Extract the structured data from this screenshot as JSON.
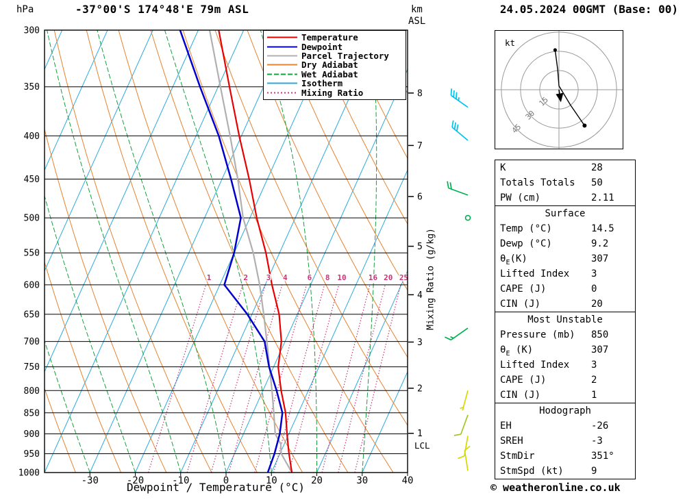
{
  "header": {
    "pressure_unit": "hPa",
    "station_title": "-37°00'S 174°48'E 79m ASL",
    "km_label": "km",
    "asl_label": "ASL",
    "datetime_title": "24.05.2024 00GMT (Base: 00)"
  },
  "axes": {
    "x_axis_label": "Dewpoint / Temperature (°C)",
    "mixing_ratio_axis_label": "Mixing Ratio (g/kg)",
    "km_ticks": [
      1,
      2,
      3,
      4,
      5,
      6,
      7,
      8
    ],
    "lcl_label": "LCL"
  },
  "colors": {
    "temperature": "#e80000",
    "dewpoint": "#0000cd",
    "parcel": "#b0b0b0",
    "dry_adiabat": "#e8822d",
    "wet_adiabat": "#14a03c",
    "isotherm": "#29aadf",
    "mixing_ratio": "#cc3377",
    "gridline": "#000000"
  },
  "legend": [
    {
      "label": "Temperature",
      "color": "#e80000",
      "dash": ""
    },
    {
      "label": "Dewpoint",
      "color": "#0000cd",
      "dash": ""
    },
    {
      "label": "Parcel Trajectory",
      "color": "#b0b0b0",
      "dash": ""
    },
    {
      "label": "Dry Adiabat",
      "color": "#e8822d",
      "dash": ""
    },
    {
      "label": "Wet Adiabat",
      "color": "#14a03c",
      "dash": "7 3"
    },
    {
      "label": "Isotherm",
      "color": "#29aadf",
      "dash": ""
    },
    {
      "label": "Mixing Ratio",
      "color": "#cc3377",
      "dash": "2 3"
    }
  ],
  "chart_data": {
    "type": "line",
    "variant": "skew-t log-p sounding",
    "title": "-37°00'S 174°48'E 79m ASL  24.05.2024 00GMT (Base: 00)",
    "x_axis": {
      "label": "Dewpoint / Temperature (°C)",
      "range": [
        -40,
        40
      ],
      "ticks": [
        -30,
        -20,
        -10,
        0,
        10,
        20,
        30,
        40
      ],
      "unit": "°C"
    },
    "y_axis": {
      "label": "hPa",
      "scale": "log",
      "range": [
        1000,
        300
      ],
      "ticks": [
        300,
        350,
        400,
        450,
        500,
        550,
        600,
        650,
        700,
        750,
        800,
        850,
        900,
        950,
        1000
      ],
      "unit": "hPa"
    },
    "series": [
      {
        "name": "Temperature",
        "color": "#e80000",
        "width": 2.2,
        "pressure_hPa": [
          1000,
          950,
          925,
          900,
          850,
          800,
          750,
          700,
          650,
          600,
          550,
          500,
          450,
          400,
          350,
          300
        ],
        "values_C": [
          14.5,
          12,
          10.8,
          9.6,
          7.2,
          4,
          1,
          -0.8,
          -4,
          -8.5,
          -13,
          -18.5,
          -24,
          -30.5,
          -37.5,
          -45.5
        ]
      },
      {
        "name": "Dewpoint",
        "color": "#0000cd",
        "width": 2.5,
        "pressure_hPa": [
          1000,
          950,
          925,
          900,
          850,
          800,
          750,
          700,
          650,
          600,
          550,
          500,
          450,
          400,
          350,
          300
        ],
        "values_C": [
          9.2,
          8.8,
          8.4,
          8,
          6.5,
          3,
          -1,
          -4.5,
          -11,
          -19,
          -20,
          -22,
          -28,
          -35,
          -44,
          -54
        ]
      },
      {
        "name": "Parcel Trajectory",
        "color": "#b0b0b0",
        "width": 2.2,
        "pressure_hPa": [
          1000,
          950,
          925,
          900,
          850,
          800,
          750,
          700,
          650,
          600,
          550,
          500,
          450,
          400,
          350,
          300
        ],
        "values_C": [
          14.5,
          10.3,
          9.2,
          7,
          4.6,
          2,
          -0.9,
          -4,
          -7.4,
          -11.2,
          -15.8,
          -21.5,
          -26.5,
          -32.5,
          -39.5,
          -47.5
        ]
      }
    ],
    "mixing_ratio_lines_g_kg": [
      1,
      2,
      3,
      4,
      6,
      8,
      10,
      16,
      20,
      25
    ],
    "winds": [
      {
        "pressure_hPa": 370,
        "speed_kt": 35,
        "dir_deg": 305,
        "color": "#00c0f0"
      },
      {
        "pressure_hPa": 405,
        "speed_kt": 30,
        "dir_deg": 310,
        "color": "#00c0f0"
      },
      {
        "pressure_hPa": 470,
        "speed_kt": 20,
        "dir_deg": 290,
        "color": "#00b050"
      },
      {
        "pressure_hPa": 500,
        "speed_kt": 2,
        "dir_deg": 0,
        "color": "#00b050",
        "calm": true
      },
      {
        "pressure_hPa": 675,
        "speed_kt": 15,
        "dir_deg": 235,
        "color": "#00b050"
      },
      {
        "pressure_hPa": 800,
        "speed_kt": 5,
        "dir_deg": 195,
        "color": "#d8d800"
      },
      {
        "pressure_hPa": 855,
        "speed_kt": 10,
        "dir_deg": 200,
        "color": "#a0c820"
      },
      {
        "pressure_hPa": 905,
        "speed_kt": 10,
        "dir_deg": 190,
        "color": "#d8d800"
      },
      {
        "pressure_hPa": 995,
        "speed_kt": 9,
        "dir_deg": 351,
        "color": "#d8d800"
      }
    ]
  },
  "hodograph": {
    "unit_label": "kt",
    "rings_kt": [
      15,
      30,
      45
    ],
    "trace_kt": [
      [
        -3,
        31
      ],
      [
        -1,
        16
      ],
      [
        0,
        3
      ],
      [
        9,
        -12
      ],
      [
        20,
        -28
      ]
    ],
    "storm_motion": {
      "dir_deg": 351,
      "speed_kt": 9
    }
  },
  "table": {
    "sections": [
      {
        "header": null,
        "rows": [
          [
            "K",
            "28"
          ],
          [
            "Totals Totals",
            "50"
          ],
          [
            "PW (cm)",
            "2.11"
          ]
        ]
      },
      {
        "header": "Surface",
        "rows": [
          [
            "Temp (°C)",
            "14.5"
          ],
          [
            "Dewp (°C)",
            "9.2"
          ],
          [
            "θE(K)",
            "307"
          ],
          [
            "Lifted Index",
            "3"
          ],
          [
            "CAPE (J)",
            "0"
          ],
          [
            "CIN (J)",
            "20"
          ]
        ]
      },
      {
        "header": "Most Unstable",
        "rows": [
          [
            "Pressure (mb)",
            "850"
          ],
          [
            "θE (K)",
            "307"
          ],
          [
            "Lifted Index",
            "3"
          ],
          [
            "CAPE (J)",
            "2"
          ],
          [
            "CIN (J)",
            "1"
          ]
        ]
      },
      {
        "header": "Hodograph",
        "rows": [
          [
            "EH",
            "-26"
          ],
          [
            "SREH",
            "-3"
          ],
          [
            "StmDir",
            "351°"
          ],
          [
            "StmSpd (kt)",
            "9"
          ]
        ]
      }
    ]
  },
  "footer": {
    "copyright": "© weatheronline.co.uk"
  }
}
